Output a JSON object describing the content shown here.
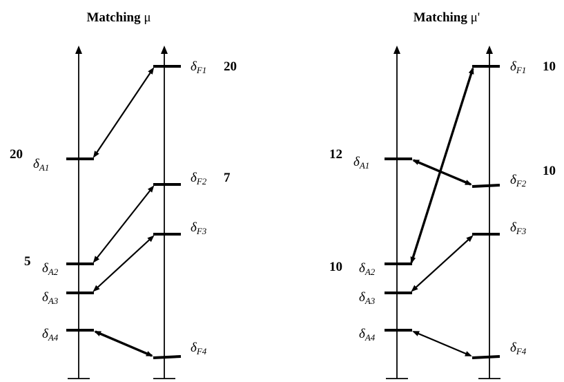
{
  "panels": [
    {
      "title_word": "Matching",
      "title_symbol": "μ",
      "labels": {
        "A1": {
          "value": "20",
          "symbol": "δ",
          "sub": "A1"
        },
        "A2": {
          "value": "5",
          "symbol": "δ",
          "sub": "A2"
        },
        "A3": {
          "value": "",
          "symbol": "δ",
          "sub": "A3"
        },
        "A4": {
          "value": "",
          "symbol": "δ",
          "sub": "A4"
        },
        "F1": {
          "value": "20",
          "symbol": "δ",
          "sub": "F1"
        },
        "F2": {
          "value": "7",
          "symbol": "δ",
          "sub": "F2"
        },
        "F3": {
          "value": "",
          "symbol": "δ",
          "sub": "F3"
        },
        "F4": {
          "value": "",
          "symbol": "δ",
          "sub": "F4"
        }
      },
      "matches": [
        [
          "A1",
          "F1"
        ],
        [
          "A2",
          "F2"
        ],
        [
          "A3",
          "F3"
        ],
        [
          "A4",
          "F4"
        ]
      ]
    },
    {
      "title_word": "Matching",
      "title_symbol": "μ'",
      "labels": {
        "A1": {
          "value": "12",
          "symbol": "δ",
          "sub": "A1"
        },
        "A2": {
          "value": "10",
          "symbol": "δ",
          "sub": "A2"
        },
        "A3": {
          "value": "",
          "symbol": "δ",
          "sub": "A3"
        },
        "A4": {
          "value": "",
          "symbol": "δ",
          "sub": "A4"
        },
        "F1": {
          "value": "10",
          "symbol": "δ",
          "sub": "F1"
        },
        "F2": {
          "value": "10",
          "symbol": "δ",
          "sub": "F2"
        },
        "F3": {
          "value": "",
          "symbol": "δ",
          "sub": "F3"
        },
        "F4": {
          "value": "",
          "symbol": "δ",
          "sub": "F4"
        }
      },
      "matches": [
        [
          "A1",
          "F2"
        ],
        [
          "A2",
          "F1"
        ],
        [
          "A3",
          "F3"
        ],
        [
          "A4",
          "F4"
        ]
      ]
    }
  ]
}
